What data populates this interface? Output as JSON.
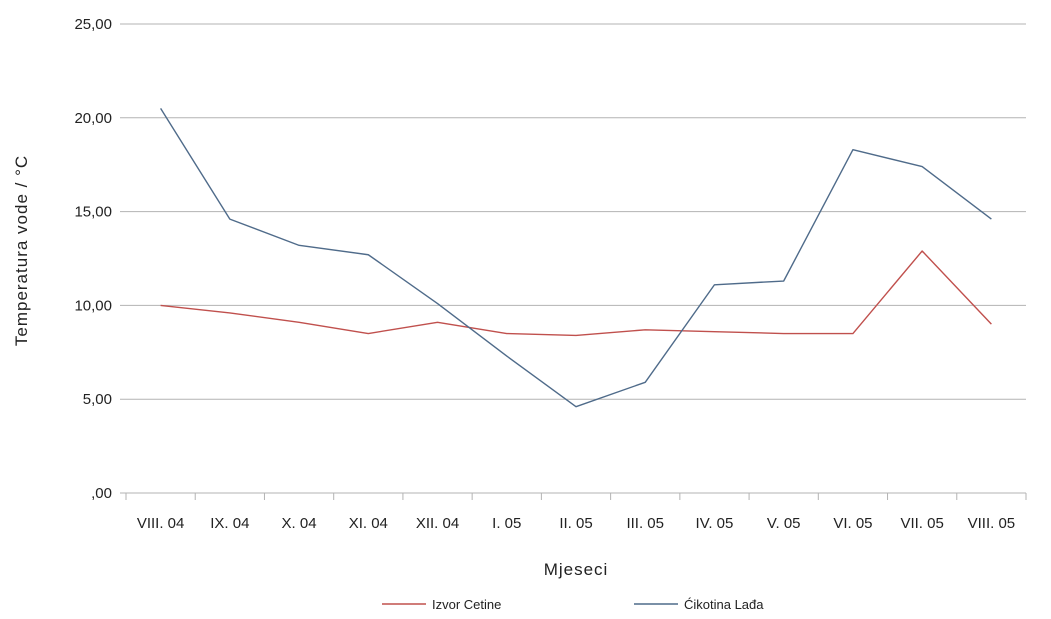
{
  "chart_data": {
    "type": "line",
    "title": "",
    "xlabel": "Mjeseci",
    "ylabel": "Temperatura vode  / °C",
    "ylim": [
      0,
      25
    ],
    "yticks": [
      "25,00",
      "20,00",
      "15,00",
      "10,00",
      "5,00",
      ",00"
    ],
    "categories": [
      "VIII. 04",
      "IX. 04",
      "X. 04",
      "XI. 04",
      "XII. 04",
      "I. 05",
      "II. 05",
      "III. 05",
      "IV. 05",
      "V. 05",
      "VI. 05",
      "VII. 05",
      "VIII. 05"
    ],
    "grid": "horizontal",
    "legend_position": "bottom",
    "series": [
      {
        "name": "Izvor Cetine",
        "color": "#c0504d",
        "values": [
          10.0,
          9.6,
          9.1,
          8.5,
          9.1,
          8.5,
          8.4,
          8.7,
          8.6,
          8.5,
          8.5,
          12.9,
          9.0
        ]
      },
      {
        "name": "Ćikotina Lađa",
        "color": "#4f6b8a",
        "values": [
          20.5,
          14.6,
          13.2,
          12.7,
          10.1,
          7.3,
          4.6,
          5.9,
          11.1,
          11.3,
          18.3,
          17.4,
          14.6
        ]
      }
    ]
  }
}
